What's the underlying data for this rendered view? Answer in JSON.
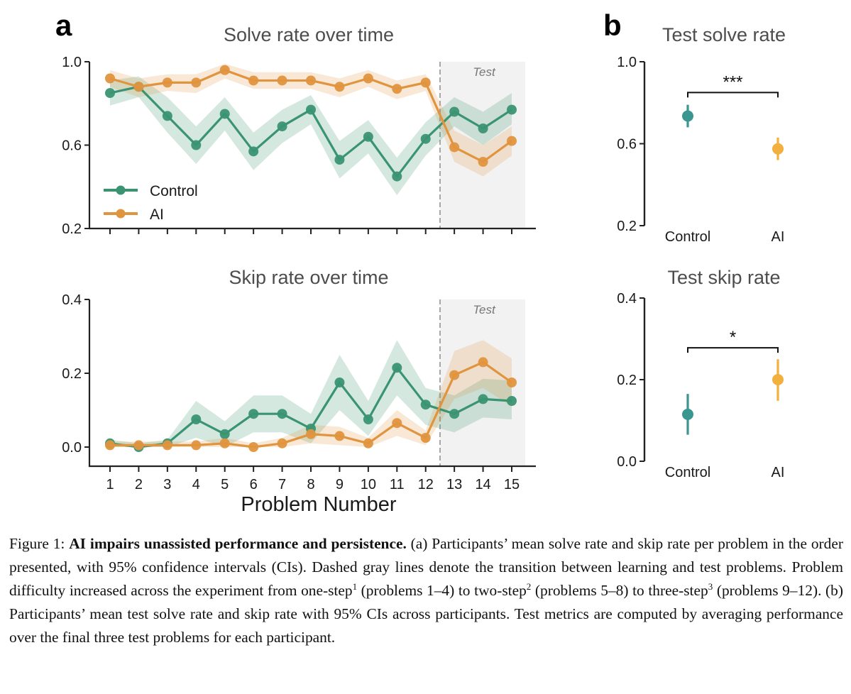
{
  "figure": {
    "panel_a_letter": "a",
    "panel_b_letter": "b",
    "caption": {
      "label": "Figure 1: ",
      "bold": "AI impairs unassisted performance and persistence.",
      "part1": " (a) Participants’ mean solve rate and skip rate per problem in the order presented, with 95% confidence intervals (CIs). Dashed gray lines denote the transition between learning and test problems. Problem difficulty increased across the experiment from one-step",
      "sup1": "1",
      "part2": " (problems 1–4) to two-step",
      "sup2": "2",
      "part3": " (problems 5–8) to three-step",
      "sup3": "3",
      "part4": " (problems 9–12). (b) Participants’ mean test solve rate and skip rate with 95% CIs across participants. Test metrics are computed by averaging performance over the final three test problems for each participant."
    }
  },
  "colors": {
    "control_line": "#3a9472",
    "ai_line": "#e0943e",
    "control_dot_b": "#3a9690",
    "ai_dot_b": "#f2b03e",
    "test_shade": "#f2f2f2",
    "dashed": "#a6a6a6"
  },
  "chart_data": [
    {
      "id": "solve_over_time",
      "type": "line",
      "title": "Solve rate over time",
      "xlabel": "",
      "ylabel": "",
      "x": [
        1,
        2,
        3,
        4,
        5,
        6,
        7,
        8,
        9,
        10,
        11,
        12,
        13,
        14,
        15
      ],
      "ylim": [
        0.2,
        1.0
      ],
      "yticks": [
        0.2,
        0.6,
        1.0
      ],
      "ytick_labels": [
        "0.2",
        "0.6",
        "1.0"
      ],
      "test_region_label": "Test",
      "test_start": 12.5,
      "legend": {
        "placement": "lower-left",
        "entries": [
          "Control",
          "AI"
        ]
      },
      "series": [
        {
          "name": "Control",
          "values": [
            0.85,
            0.88,
            0.74,
            0.6,
            0.75,
            0.57,
            0.69,
            0.77,
            0.53,
            0.64,
            0.45,
            0.63,
            0.76,
            0.68,
            0.77
          ],
          "ci_low": [
            0.79,
            0.83,
            0.66,
            0.51,
            0.67,
            0.48,
            0.61,
            0.7,
            0.44,
            0.56,
            0.36,
            0.55,
            0.69,
            0.6,
            0.7
          ],
          "ci_high": [
            0.91,
            0.93,
            0.83,
            0.69,
            0.83,
            0.66,
            0.77,
            0.84,
            0.62,
            0.72,
            0.54,
            0.71,
            0.83,
            0.76,
            0.85
          ]
        },
        {
          "name": "AI",
          "values": [
            0.92,
            0.88,
            0.9,
            0.9,
            0.96,
            0.91,
            0.91,
            0.91,
            0.88,
            0.92,
            0.87,
            0.9,
            0.59,
            0.52,
            0.62
          ],
          "ci_low": [
            0.88,
            0.83,
            0.86,
            0.85,
            0.92,
            0.87,
            0.87,
            0.87,
            0.83,
            0.88,
            0.82,
            0.86,
            0.52,
            0.45,
            0.55
          ],
          "ci_high": [
            0.96,
            0.92,
            0.94,
            0.94,
            0.99,
            0.95,
            0.95,
            0.95,
            0.92,
            0.96,
            0.91,
            0.94,
            0.67,
            0.6,
            0.69
          ]
        }
      ]
    },
    {
      "id": "skip_over_time",
      "type": "line",
      "title": "Skip rate over time",
      "xlabel": "Problem Number",
      "ylabel": "",
      "x": [
        1,
        2,
        3,
        4,
        5,
        6,
        7,
        8,
        9,
        10,
        11,
        12,
        13,
        14,
        15
      ],
      "xtick_labels": [
        "1",
        "2",
        "3",
        "4",
        "5",
        "6",
        "7",
        "8",
        "9",
        "10",
        "11",
        "12",
        "13",
        "14",
        "15"
      ],
      "ylim": [
        -0.052,
        0.4
      ],
      "yticks": [
        0.0,
        0.2,
        0.4
      ],
      "ytick_labels": [
        "0.0",
        "0.2",
        "0.4"
      ],
      "test_region_label": "Test",
      "test_start": 12.5,
      "series": [
        {
          "name": "Control",
          "values": [
            0.01,
            0.0,
            0.01,
            0.075,
            0.035,
            0.09,
            0.09,
            0.05,
            0.175,
            0.075,
            0.215,
            0.115,
            0.09,
            0.13,
            0.125
          ],
          "ci_low": [
            0.0,
            0.0,
            0.0,
            0.025,
            0.0,
            0.04,
            0.04,
            0.01,
            0.1,
            0.03,
            0.14,
            0.06,
            0.04,
            0.08,
            0.075
          ],
          "ci_high": [
            0.02,
            0.01,
            0.02,
            0.125,
            0.07,
            0.14,
            0.14,
            0.09,
            0.25,
            0.125,
            0.29,
            0.16,
            0.14,
            0.185,
            0.18
          ]
        },
        {
          "name": "AI",
          "values": [
            0.005,
            0.005,
            0.005,
            0.005,
            0.01,
            0.0,
            0.01,
            0.035,
            0.03,
            0.01,
            0.065,
            0.025,
            0.195,
            0.23,
            0.175
          ],
          "ci_low": [
            0.0,
            0.0,
            0.0,
            0.0,
            0.0,
            0.0,
            0.0,
            0.01,
            0.005,
            0.0,
            0.03,
            0.005,
            0.13,
            0.16,
            0.11
          ],
          "ci_high": [
            0.015,
            0.015,
            0.015,
            0.015,
            0.025,
            0.01,
            0.025,
            0.06,
            0.055,
            0.025,
            0.1,
            0.045,
            0.26,
            0.29,
            0.24
          ]
        }
      ]
    },
    {
      "id": "test_solve",
      "type": "scatter",
      "title": "Test solve rate",
      "categories": [
        "Control",
        "AI"
      ],
      "ylim": [
        0.2,
        1.0
      ],
      "yticks": [
        0.2,
        0.6,
        1.0
      ],
      "ytick_labels": [
        "0.2",
        "0.6",
        "1.0"
      ],
      "values": [
        0.735,
        0.575
      ],
      "ci_low": [
        0.68,
        0.52
      ],
      "ci_high": [
        0.79,
        0.63
      ],
      "significance": {
        "label": "***",
        "y": 0.85
      }
    },
    {
      "id": "test_skip",
      "type": "scatter",
      "title": "Test skip rate",
      "categories": [
        "Control",
        "AI"
      ],
      "ylim": [
        0.0,
        0.4
      ],
      "yticks": [
        0.0,
        0.2,
        0.4
      ],
      "ytick_labels": [
        "0.0",
        "0.2",
        "0.4"
      ],
      "values": [
        0.115,
        0.2
      ],
      "ci_low": [
        0.065,
        0.148
      ],
      "ci_high": [
        0.165,
        0.25
      ],
      "significance": {
        "label": "*",
        "y": 0.278
      }
    }
  ]
}
